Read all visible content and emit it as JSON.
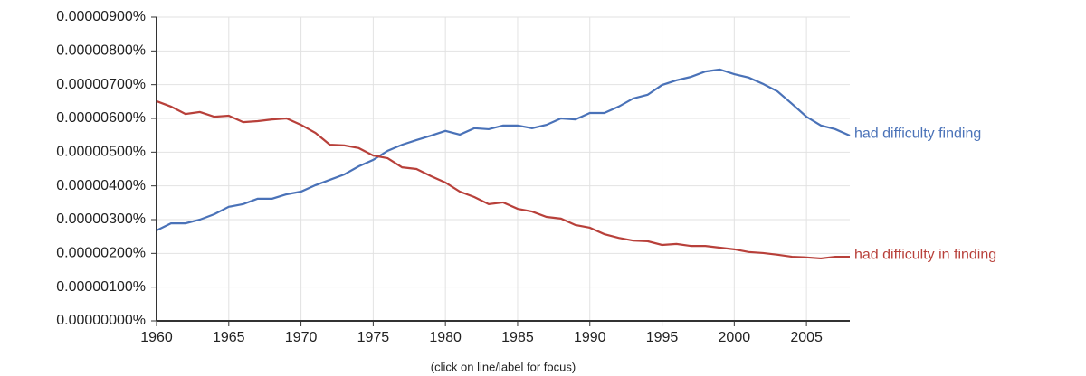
{
  "chart_data": {
    "type": "line",
    "note": "(click on line/label for focus)",
    "x": [
      1960,
      1961,
      1962,
      1963,
      1964,
      1965,
      1966,
      1967,
      1968,
      1969,
      1970,
      1971,
      1972,
      1973,
      1974,
      1975,
      1976,
      1977,
      1978,
      1979,
      1980,
      1981,
      1982,
      1983,
      1984,
      1985,
      1986,
      1987,
      1988,
      1989,
      1990,
      1991,
      1992,
      1993,
      1994,
      1995,
      1996,
      1997,
      1998,
      1999,
      2000,
      2001,
      2002,
      2003,
      2004,
      2005,
      2006,
      2007,
      2008
    ],
    "series": [
      {
        "name": "had difficulty finding",
        "color": "#4a72b8",
        "values": [
          2.68e-06,
          2.89e-06,
          2.89e-06,
          3e-06,
          3.16e-06,
          3.38e-06,
          3.46e-06,
          3.62e-06,
          3.62e-06,
          3.75e-06,
          3.83e-06,
          4.02e-06,
          4.18e-06,
          4.34e-06,
          4.58e-06,
          4.77e-06,
          5.04e-06,
          5.22e-06,
          5.36e-06,
          5.49e-06,
          5.63e-06,
          5.52e-06,
          5.71e-06,
          5.68e-06,
          5.79e-06,
          5.79e-06,
          5.71e-06,
          5.81e-06,
          6e-06,
          5.97e-06,
          6.16e-06,
          6.16e-06,
          6.35e-06,
          6.59e-06,
          6.7e-06,
          6.99e-06,
          7.13e-06,
          7.23e-06,
          7.39e-06,
          7.45e-06,
          7.31e-06,
          7.21e-06,
          7.02e-06,
          6.8e-06,
          6.43e-06,
          6.05e-06,
          5.79e-06,
          5.68e-06,
          5.49e-06
        ]
      },
      {
        "name": "had difficulty in finding",
        "color": "#b8403a",
        "values": [
          6.51e-06,
          6.35e-06,
          6.13e-06,
          6.19e-06,
          6.05e-06,
          6.08e-06,
          5.89e-06,
          5.92e-06,
          5.97e-06,
          6e-06,
          5.81e-06,
          5.57e-06,
          5.22e-06,
          5.2e-06,
          5.12e-06,
          4.9e-06,
          4.82e-06,
          4.55e-06,
          4.5e-06,
          4.29e-06,
          4.1e-06,
          3.83e-06,
          3.67e-06,
          3.46e-06,
          3.51e-06,
          3.32e-06,
          3.24e-06,
          3.08e-06,
          3.03e-06,
          2.84e-06,
          2.76e-06,
          2.57e-06,
          2.46e-06,
          2.38e-06,
          2.36e-06,
          2.25e-06,
          2.28e-06,
          2.22e-06,
          2.22e-06,
          2.17e-06,
          2.12e-06,
          2.04e-06,
          2.01e-06,
          1.96e-06,
          1.9e-06,
          1.88e-06,
          1.85e-06,
          1.9e-06,
          1.9e-06
        ]
      }
    ],
    "xlim": [
      1960,
      2008
    ],
    "xticks": [
      1960,
      1965,
      1970,
      1975,
      1980,
      1985,
      1990,
      1995,
      2000,
      2005
    ],
    "ylim": [
      0,
      9e-06
    ],
    "yticks": [
      {
        "value": 0,
        "label": "0.00000000%"
      },
      {
        "value": 1e-06,
        "label": "0.00000100%"
      },
      {
        "value": 2e-06,
        "label": "0.00000200%"
      },
      {
        "value": 3e-06,
        "label": "0.00000300%"
      },
      {
        "value": 4e-06,
        "label": "0.00000400%"
      },
      {
        "value": 5e-06,
        "label": "0.00000500%"
      },
      {
        "value": 6e-06,
        "label": "0.00000600%"
      },
      {
        "value": 7e-06,
        "label": "0.00000700%"
      },
      {
        "value": 8e-06,
        "label": "0.00000800%"
      },
      {
        "value": 9e-06,
        "label": "0.00000900%"
      }
    ],
    "grid": true
  }
}
